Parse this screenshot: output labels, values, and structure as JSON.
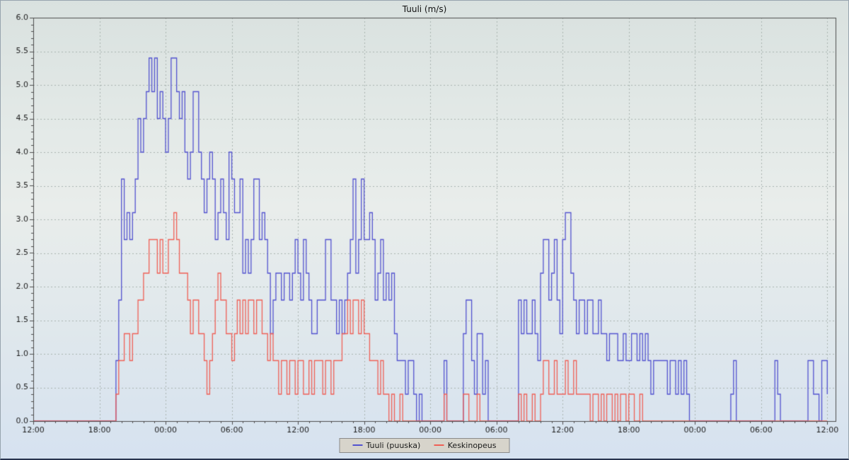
{
  "chart_data": {
    "type": "line",
    "step": true,
    "title": "Tuuli (m/s)",
    "x_axis": {
      "tick_labels": [
        "12:00",
        "18:00",
        "00:00",
        "06:00",
        "12:00",
        "18:00",
        "00:00",
        "06:00",
        "12:00",
        "18:00",
        "00:00",
        "06:00",
        "12:00"
      ],
      "tick_hours": [
        0,
        6,
        12,
        18,
        24,
        30,
        36,
        42,
        48,
        54,
        60,
        66,
        72
      ],
      "minor_tick_every_hours": 1,
      "range_hours": [
        0,
        72.75
      ]
    },
    "y_axis": {
      "min": 0,
      "max": 6,
      "tick_step": 0.5,
      "minor_tick_step": 0.1,
      "tick_labels": [
        "0.0",
        "0.5",
        "1.0",
        "1.5",
        "2.0",
        "2.5",
        "3.0",
        "3.5",
        "4.0",
        "4.5",
        "5.0",
        "5.5",
        "6.0"
      ]
    },
    "sample_step_minutes": 15,
    "grid": true,
    "legend_position": "bottom",
    "colors": {
      "gust": "#5252cf",
      "mean": "#ef5f55",
      "grid": "#a8b3af",
      "axis": "#4d4d4d"
    },
    "series": [
      {
        "name": "Tuuli (puuska)",
        "color": "#5252cf",
        "values": [
          0,
          0,
          0,
          0,
          0,
          0,
          0,
          0,
          0,
          0,
          0,
          0,
          0,
          0,
          0,
          0,
          0,
          0,
          0,
          0,
          0,
          0,
          0,
          0,
          0,
          0,
          0,
          0,
          0,
          0,
          0.9,
          1.8,
          3.6,
          2.7,
          3.1,
          2.7,
          3.1,
          3.6,
          4.5,
          4.0,
          4.5,
          4.9,
          5.4,
          4.9,
          5.4,
          4.5,
          4.9,
          4.5,
          4.0,
          4.5,
          5.4,
          5.4,
          4.9,
          4.5,
          4.9,
          4.0,
          3.6,
          4.0,
          4.9,
          4.9,
          4.0,
          3.6,
          3.1,
          3.6,
          4.0,
          3.6,
          2.7,
          3.1,
          3.6,
          3.1,
          2.7,
          4.0,
          3.6,
          3.1,
          3.1,
          3.6,
          2.2,
          2.7,
          2.2,
          2.7,
          3.6,
          3.6,
          2.7,
          3.1,
          2.7,
          2.2,
          1.3,
          1.8,
          2.2,
          2.2,
          1.8,
          2.2,
          2.2,
          1.8,
          2.2,
          2.7,
          2.2,
          1.8,
          2.7,
          2.2,
          1.8,
          1.3,
          1.3,
          1.8,
          1.8,
          1.8,
          2.7,
          2.7,
          1.8,
          1.8,
          1.3,
          1.8,
          1.3,
          1.8,
          2.2,
          2.7,
          3.6,
          2.2,
          2.7,
          3.6,
          2.7,
          2.7,
          3.1,
          2.7,
          1.8,
          2.2,
          2.7,
          1.8,
          2.2,
          1.8,
          2.2,
          1.3,
          0.9,
          0.9,
          0.9,
          0.4,
          0.9,
          0.9,
          0.4,
          0,
          0.4,
          0,
          0,
          0,
          0,
          0,
          0,
          0,
          0,
          0.9,
          0,
          0,
          0,
          0,
          0,
          0,
          1.3,
          1.8,
          1.8,
          0.9,
          0.4,
          1.3,
          1.3,
          0.4,
          0.9,
          0,
          0,
          0,
          0,
          0,
          0,
          0,
          0,
          0,
          0,
          0,
          1.8,
          1.3,
          1.8,
          1.3,
          1.3,
          1.8,
          1.3,
          0.9,
          2.2,
          2.7,
          2.7,
          1.8,
          2.2,
          2.7,
          1.8,
          1.3,
          2.7,
          3.1,
          3.1,
          2.2,
          1.8,
          1.3,
          1.8,
          1.8,
          1.3,
          1.8,
          1.8,
          1.3,
          1.3,
          1.8,
          1.3,
          1.3,
          0.9,
          1.3,
          1.3,
          1.3,
          0.9,
          0.9,
          1.3,
          0.9,
          0.9,
          1.3,
          1.3,
          0.9,
          1.3,
          0.9,
          1.3,
          0.9,
          0.4,
          0.9,
          0.9,
          0.9,
          0.9,
          0.9,
          0.4,
          0.9,
          0.9,
          0.4,
          0.9,
          0.4,
          0.9,
          0.4,
          0,
          0,
          0,
          0,
          0,
          0,
          0,
          0,
          0,
          0,
          0,
          0,
          0,
          0,
          0,
          0.4,
          0.9,
          0,
          0,
          0,
          0,
          0,
          0,
          0,
          0,
          0,
          0,
          0,
          0,
          0,
          0,
          0.9,
          0.4,
          0,
          0,
          0,
          0,
          0,
          0,
          0,
          0,
          0,
          0,
          0.9,
          0.9,
          0.4,
          0.4,
          0,
          0.9,
          0.9,
          0.4
        ]
      },
      {
        "name": "Keskinopeus",
        "color": "#ef5f55",
        "values": [
          0,
          0,
          0,
          0,
          0,
          0,
          0,
          0,
          0,
          0,
          0,
          0,
          0,
          0,
          0,
          0,
          0,
          0,
          0,
          0,
          0,
          0,
          0,
          0,
          0,
          0,
          0,
          0,
          0,
          0,
          0.4,
          0.9,
          0.9,
          1.3,
          1.3,
          0.9,
          1.3,
          1.3,
          1.8,
          1.8,
          2.2,
          2.2,
          2.7,
          2.7,
          2.7,
          2.2,
          2.7,
          2.2,
          2.2,
          2.7,
          2.7,
          3.1,
          2.7,
          2.2,
          2.2,
          2.2,
          1.8,
          1.3,
          1.8,
          1.8,
          1.3,
          1.3,
          0.9,
          0.4,
          0.9,
          1.3,
          1.8,
          2.2,
          1.8,
          1.8,
          1.3,
          1.3,
          0.9,
          1.3,
          1.8,
          1.3,
          1.8,
          1.3,
          1.8,
          1.8,
          1.3,
          1.8,
          1.8,
          1.3,
          1.3,
          0.9,
          1.3,
          0.9,
          0.9,
          0.4,
          0.9,
          0.9,
          0.4,
          0.9,
          0.9,
          0.4,
          0.9,
          0.9,
          0.4,
          0.4,
          0.9,
          0.4,
          0.9,
          0.9,
          0.9,
          0.4,
          0.9,
          0.9,
          0.4,
          0.9,
          0.9,
          0.9,
          1.3,
          1.3,
          1.8,
          1.3,
          1.8,
          1.8,
          1.3,
          1.8,
          1.3,
          1.3,
          0.9,
          0.9,
          0.9,
          0.4,
          0.9,
          0.4,
          0.4,
          0,
          0.4,
          0,
          0,
          0.4,
          0,
          0,
          0,
          0,
          0,
          0,
          0,
          0,
          0,
          0,
          0,
          0,
          0,
          0,
          0,
          0.4,
          0,
          0,
          0,
          0,
          0,
          0,
          0.4,
          0.4,
          0,
          0,
          0,
          0.4,
          0,
          0,
          0,
          0,
          0,
          0,
          0,
          0,
          0,
          0,
          0,
          0,
          0,
          0,
          0.4,
          0,
          0.4,
          0,
          0,
          0.4,
          0,
          0,
          0.4,
          0.9,
          0.9,
          0.4,
          0.4,
          0.9,
          0.4,
          0.4,
          0.4,
          0.9,
          0.4,
          0.4,
          0.9,
          0.4,
          0.4,
          0.4,
          0.4,
          0.4,
          0,
          0.4,
          0.4,
          0,
          0.4,
          0,
          0.4,
          0.4,
          0,
          0.4,
          0,
          0.4,
          0.4,
          0,
          0.4,
          0.4,
          0,
          0,
          0.4,
          0,
          0,
          0,
          0,
          0,
          0,
          0,
          0,
          0,
          0,
          0,
          0,
          0,
          0,
          0,
          0,
          0,
          0,
          0,
          0,
          0,
          0,
          0,
          0,
          0,
          0,
          0,
          0,
          0,
          0,
          0,
          0,
          0,
          0,
          0,
          0,
          0,
          0,
          0,
          0,
          0,
          0,
          0,
          0,
          0,
          0,
          0,
          0,
          0,
          0,
          0,
          0,
          0,
          0,
          0,
          0,
          0,
          0,
          0,
          0,
          0,
          0,
          0,
          0,
          0,
          0,
          0,
          0
        ]
      }
    ]
  }
}
